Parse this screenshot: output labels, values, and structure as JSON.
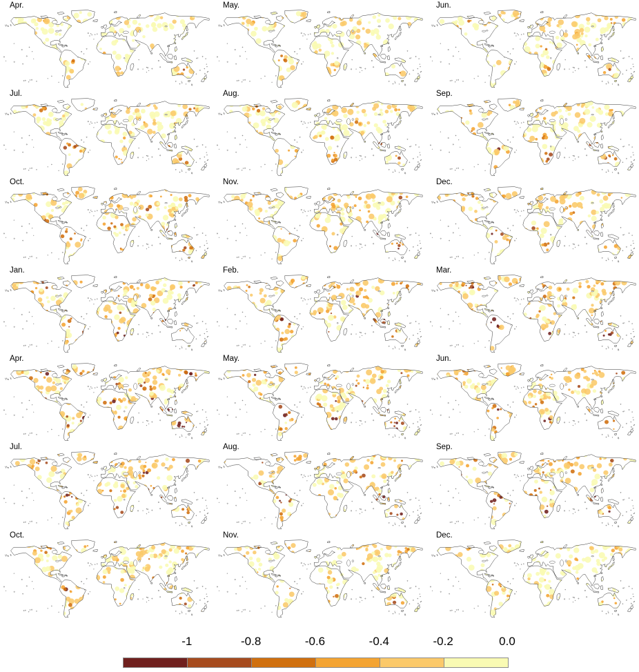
{
  "panels": [
    {
      "label": "Apr.",
      "intensity": 0.3
    },
    {
      "label": "May.",
      "intensity": 0.3
    },
    {
      "label": "Jun.",
      "intensity": 0.36
    },
    {
      "label": "Jul.",
      "intensity": 0.4
    },
    {
      "label": "Aug.",
      "intensity": 0.38
    },
    {
      "label": "Sep.",
      "intensity": 0.42
    },
    {
      "label": "Oct.",
      "intensity": 0.5
    },
    {
      "label": "Nov.",
      "intensity": 0.5
    },
    {
      "label": "Dec.",
      "intensity": 0.48
    },
    {
      "label": "Jan.",
      "intensity": 0.6
    },
    {
      "label": "Feb.",
      "intensity": 0.55
    },
    {
      "label": "Mar.",
      "intensity": 0.6
    },
    {
      "label": "Apr.",
      "intensity": 0.66
    },
    {
      "label": "May.",
      "intensity": 0.62
    },
    {
      "label": "Jun.",
      "intensity": 0.6
    },
    {
      "label": "Jul.",
      "intensity": 0.58
    },
    {
      "label": "Aug.",
      "intensity": 0.55
    },
    {
      "label": "Sep.",
      "intensity": 0.55
    },
    {
      "label": "Oct.",
      "intensity": 0.45
    },
    {
      "label": "Nov.",
      "intensity": 0.4
    },
    {
      "label": "Dec.",
      "intensity": 0.32
    }
  ],
  "colorbar": {
    "ticks": [
      "-1",
      "-0.8",
      "-0.6",
      "-0.4",
      "-0.2",
      "0.0"
    ],
    "colors": [
      "#70201e",
      "#a64b1e",
      "#d0700f",
      "#f4a432",
      "#fbc96a",
      "#f9fab3"
    ],
    "border_color": "#8b8b8b"
  },
  "chart_data": {
    "type": "heatmap",
    "subtype": "global-choropleth-map-grid",
    "layout": {
      "rows": 7,
      "cols": 3,
      "legend_position": "bottom",
      "grid": "off"
    },
    "panel_months": [
      "Apr.",
      "May.",
      "Jun.",
      "Jul.",
      "Aug.",
      "Sep.",
      "Oct.",
      "Nov.",
      "Dec.",
      "Jan.",
      "Feb.",
      "Mar.",
      "Apr.",
      "May.",
      "Jun.",
      "Jul.",
      "Aug.",
      "Sep.",
      "Oct.",
      "Nov.",
      "Dec."
    ],
    "colorbar_ticks": [
      -1,
      -0.8,
      -0.6,
      -0.4,
      -0.2,
      0.0
    ],
    "colorbar_colors": [
      "#70201e",
      "#a64b1e",
      "#d0700f",
      "#f4a432",
      "#fbc96a",
      "#f9fab3"
    ],
    "value_scale": "negative anomaly, pale yellow near 0.0 to dark maroon at -1 and below",
    "relative_shading_extent_per_panel": [
      0.3,
      0.3,
      0.36,
      0.4,
      0.38,
      0.42,
      0.5,
      0.5,
      0.48,
      0.6,
      0.55,
      0.6,
      0.66,
      0.62,
      0.6,
      0.58,
      0.55,
      0.55,
      0.45,
      0.4,
      0.32
    ]
  }
}
